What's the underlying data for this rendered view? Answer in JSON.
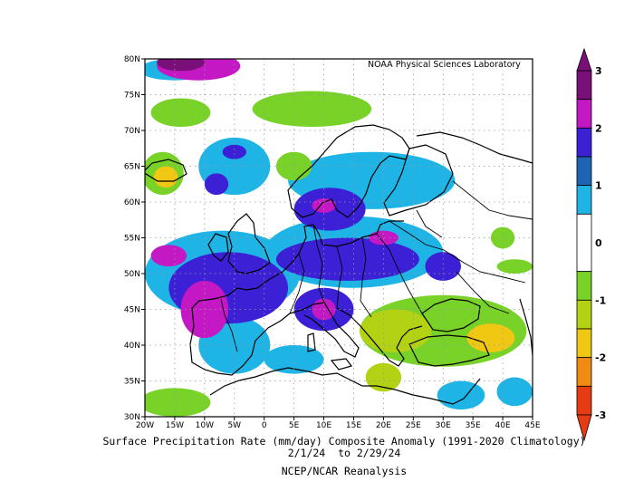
{
  "map": {
    "credit": "NOAA Physical Sciences Laboratory",
    "projection": "lat-lon",
    "extent": {
      "lon": [
        -20,
        45
      ],
      "lat": [
        30,
        80
      ]
    },
    "grid": "dotted",
    "lat_labels": [
      "80N",
      "75N",
      "70N",
      "65N",
      "60N",
      "55N",
      "50N",
      "45N",
      "40N",
      "35N",
      "30N"
    ],
    "lat_values": [
      80,
      75,
      70,
      65,
      60,
      55,
      50,
      45,
      40,
      35,
      30
    ],
    "lon_labels": [
      "20W",
      "15W",
      "10W",
      "5W",
      "0",
      "5E",
      "10E",
      "15E",
      "20E",
      "25E",
      "30E",
      "35E",
      "40E",
      "45E"
    ],
    "lon_values": [
      -20,
      -15,
      -10,
      -5,
      0,
      5,
      10,
      15,
      20,
      25,
      30,
      35,
      40,
      45
    ]
  },
  "caption": {
    "line1": "Surface Precipitation Rate (mm/day) Composite Anomaly (1991-2020 Climatology)",
    "line2": "2/1/24  to 2/29/24",
    "line3": "NCEP/NCAR Reanalysis"
  },
  "colorbar": {
    "labels": [
      "3",
      "2",
      "1",
      "0",
      "-1",
      "-2",
      "-3"
    ],
    "label_values": [
      3,
      2,
      1,
      0,
      -1,
      -2,
      -3
    ],
    "levels": [
      {
        "from": 2.5,
        "to": 3.0,
        "color": "#7a0f7a"
      },
      {
        "from": 2.0,
        "to": 2.5,
        "color": "#c418c4"
      },
      {
        "from": 1.5,
        "to": 2.0,
        "color": "#3b20d6"
      },
      {
        "from": 1.0,
        "to": 1.5,
        "color": "#1e64b4"
      },
      {
        "from": 0.5,
        "to": 1.0,
        "color": "#1eb4e6"
      },
      {
        "from": -0.5,
        "to": 0.5,
        "color": "#ffffff"
      },
      {
        "from": -1.0,
        "to": -0.5,
        "color": "#78d228"
      },
      {
        "from": -1.5,
        "to": -1.0,
        "color": "#b4d214"
      },
      {
        "from": -2.0,
        "to": -1.5,
        "color": "#f0c814"
      },
      {
        "from": -2.5,
        "to": -2.0,
        "color": "#f08c14"
      },
      {
        "from": -3.0,
        "to": -2.5,
        "color": "#e63c14"
      }
    ]
  },
  "anomalies": [
    {
      "lon": -14,
      "lat": 79.5,
      "rx": 4,
      "ry": 1.2,
      "level": "purple"
    },
    {
      "lon": -11,
      "lat": 79,
      "rx": 7,
      "ry": 2,
      "level": "magenta"
    },
    {
      "lon": -15,
      "lat": 78.5,
      "rx": 6,
      "ry": 1.5,
      "level": "cyan"
    },
    {
      "lon": 8,
      "lat": 73,
      "rx": 10,
      "ry": 2.5,
      "level": "green"
    },
    {
      "lon": -14,
      "lat": 72.5,
      "rx": 5,
      "ry": 2,
      "level": "green"
    },
    {
      "lon": -17,
      "lat": 64,
      "rx": 3.5,
      "ry": 3,
      "level": "green"
    },
    {
      "lon": -16.5,
      "lat": 63.5,
      "rx": 2,
      "ry": 1.5,
      "level": "yellow"
    },
    {
      "lon": -5,
      "lat": 65,
      "rx": 6,
      "ry": 4,
      "level": "cyan"
    },
    {
      "lon": -8,
      "lat": 62.5,
      "rx": 2,
      "ry": 1.5,
      "level": "blue"
    },
    {
      "lon": -5,
      "lat": 67,
      "rx": 2,
      "ry": 1,
      "level": "blue"
    },
    {
      "lon": 5,
      "lat": 65,
      "rx": 3,
      "ry": 2,
      "level": "green"
    },
    {
      "lon": 18,
      "lat": 63,
      "rx": 14,
      "ry": 4,
      "level": "cyan"
    },
    {
      "lon": 11,
      "lat": 59,
      "rx": 6,
      "ry": 3,
      "level": "blue"
    },
    {
      "lon": 10,
      "lat": 59.5,
      "rx": 2,
      "ry": 1,
      "level": "magenta"
    },
    {
      "lon": -7,
      "lat": 50,
      "rx": 13,
      "ry": 6,
      "level": "cyan"
    },
    {
      "lon": -6,
      "lat": 48,
      "rx": 10,
      "ry": 5,
      "level": "blue"
    },
    {
      "lon": -10,
      "lat": 45,
      "rx": 4,
      "ry": 4,
      "level": "magenta"
    },
    {
      "lon": -16,
      "lat": 52.5,
      "rx": 3,
      "ry": 1.5,
      "level": "magenta"
    },
    {
      "lon": -5,
      "lat": 40,
      "rx": 6,
      "ry": 4,
      "level": "cyan"
    },
    {
      "lon": 15,
      "lat": 53,
      "rx": 15,
      "ry": 5,
      "level": "cyan"
    },
    {
      "lon": 14,
      "lat": 52,
      "rx": 12,
      "ry": 3,
      "level": "blue"
    },
    {
      "lon": 20,
      "lat": 55,
      "rx": 2.5,
      "ry": 1,
      "level": "magenta"
    },
    {
      "lon": 10,
      "lat": 45,
      "rx": 5,
      "ry": 3,
      "level": "blue"
    },
    {
      "lon": 10,
      "lat": 45,
      "rx": 2,
      "ry": 1.5,
      "level": "magenta"
    },
    {
      "lon": 30,
      "lat": 51,
      "rx": 3,
      "ry": 2,
      "level": "blue"
    },
    {
      "lon": 40,
      "lat": 55,
      "rx": 2,
      "ry": 1.5,
      "level": "green"
    },
    {
      "lon": 42,
      "lat": 51,
      "rx": 3,
      "ry": 1,
      "level": "green"
    },
    {
      "lon": 30,
      "lat": 42,
      "rx": 14,
      "ry": 5,
      "level": "green"
    },
    {
      "lon": 22,
      "lat": 42,
      "rx": 6,
      "ry": 3,
      "level": "lime"
    },
    {
      "lon": 38,
      "lat": 41,
      "rx": 4,
      "ry": 2,
      "level": "yellow"
    },
    {
      "lon": 20,
      "lat": 35.5,
      "rx": 3,
      "ry": 2,
      "level": "lime"
    },
    {
      "lon": 33,
      "lat": 33,
      "rx": 4,
      "ry": 2,
      "level": "cyan"
    },
    {
      "lon": -15,
      "lat": 32,
      "rx": 6,
      "ry": 2,
      "level": "green"
    },
    {
      "lon": 5,
      "lat": 38,
      "rx": 5,
      "ry": 2,
      "level": "cyan"
    },
    {
      "lon": 42,
      "lat": 33.5,
      "rx": 3,
      "ry": 2,
      "level": "cyan"
    }
  ]
}
